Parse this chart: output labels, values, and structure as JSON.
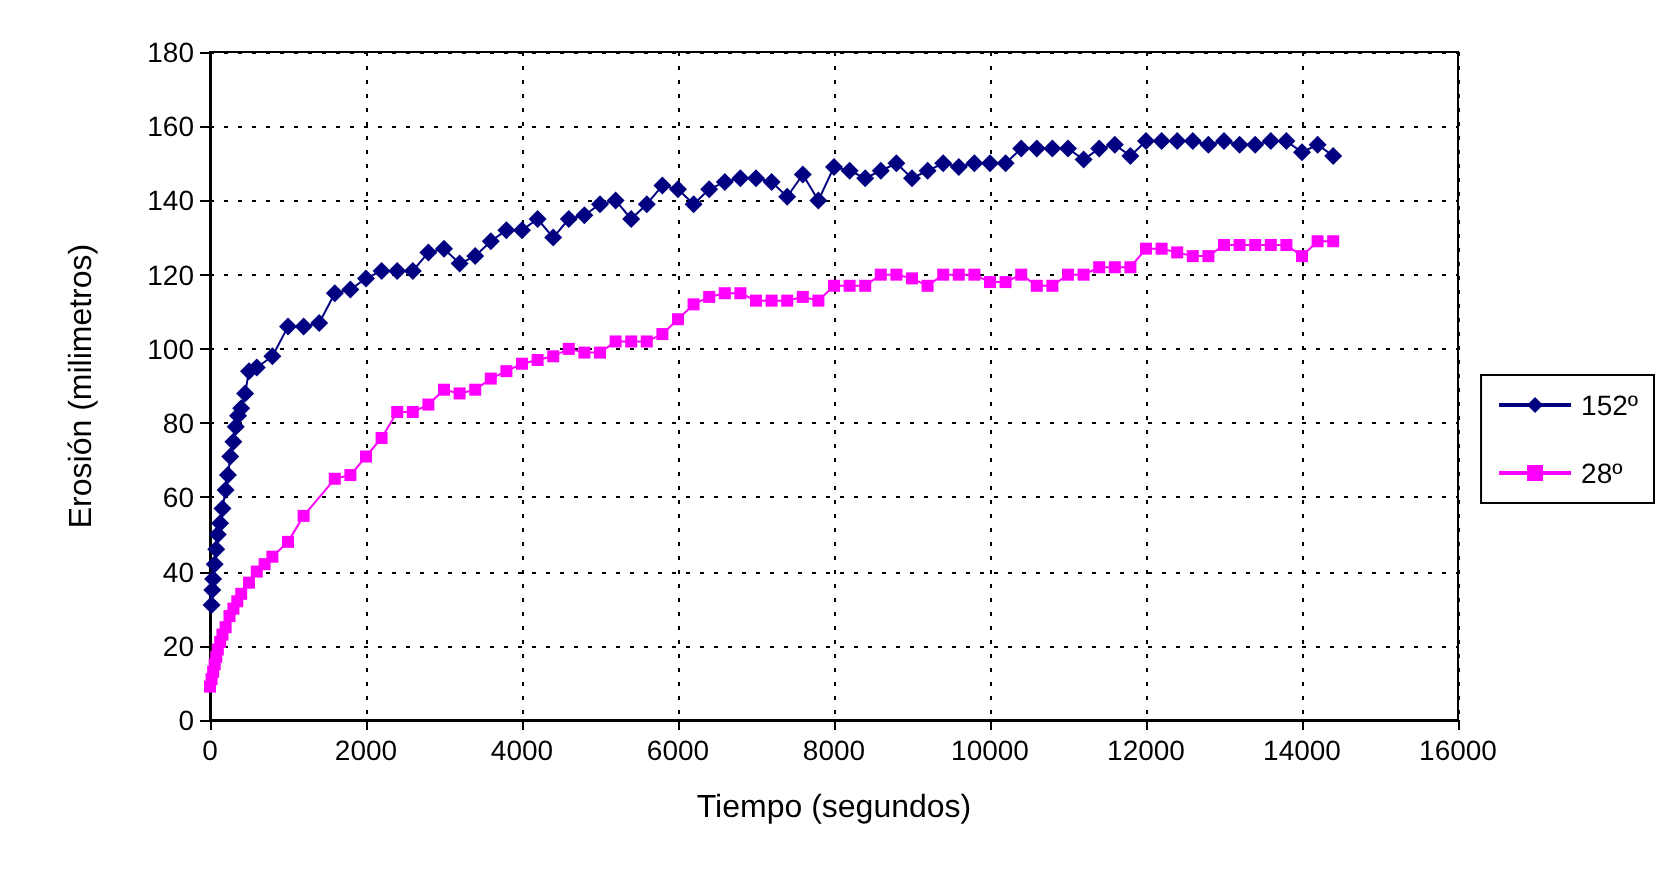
{
  "chart_data": {
    "type": "line",
    "xlabel": "Tiempo (segundos)",
    "ylabel": "Erosión (milimetros)",
    "xlim": [
      0,
      16000
    ],
    "xticks": [
      0,
      2000,
      4000,
      6000,
      8000,
      10000,
      12000,
      14000,
      16000
    ],
    "ylim": [
      0,
      180
    ],
    "yticks": [
      0,
      20,
      40,
      60,
      80,
      100,
      120,
      140,
      160,
      180
    ],
    "grid": true,
    "legend": "right",
    "line_style": "solid",
    "series": [
      {
        "name": "152º",
        "color": "#000080",
        "marker": "diamond",
        "x": [
          20,
          30,
          40,
          60,
          80,
          100,
          130,
          160,
          200,
          230,
          260,
          300,
          330,
          360,
          400,
          450,
          500,
          600,
          800,
          1000,
          1200,
          1400,
          1600,
          1800,
          2000,
          2200,
          2400,
          2600,
          2800,
          3000,
          3200,
          3400,
          3600,
          3800,
          4000,
          4200,
          4400,
          4600,
          4800,
          5000,
          5200,
          5400,
          5600,
          5800,
          6000,
          6200,
          6400,
          6600,
          6800,
          7000,
          7200,
          7400,
          7600,
          7800,
          8000,
          8200,
          8400,
          8600,
          8800,
          9000,
          9200,
          9400,
          9600,
          9800,
          10000,
          10200,
          10400,
          10600,
          10800,
          11000,
          11200,
          11400,
          11600,
          11800,
          12000,
          12200,
          12400,
          12600,
          12800,
          13000,
          13200,
          13400,
          13600,
          13800,
          14000,
          14200,
          14400
        ],
        "values": [
          31,
          35,
          38,
          42,
          46,
          50,
          53,
          57,
          62,
          66,
          71,
          75,
          79,
          82,
          84,
          88,
          94,
          95,
          98,
          106,
          106,
          107,
          115,
          116,
          119,
          121,
          121,
          121,
          126,
          127,
          123,
          125,
          129,
          132,
          132,
          135,
          130,
          135,
          136,
          139,
          140,
          135,
          139,
          144,
          143,
          139,
          143,
          145,
          146,
          146,
          145,
          141,
          147,
          140,
          149,
          148,
          146,
          148,
          150,
          146,
          148,
          150,
          149,
          150,
          150,
          150,
          154,
          154,
          154,
          154,
          151,
          154,
          155,
          152,
          156,
          156,
          156,
          156,
          155,
          156,
          155,
          155,
          156,
          156,
          153,
          155,
          152
        ]
      },
      {
        "name": "28º",
        "color": "#ff00ff",
        "marker": "square",
        "x": [
          0,
          20,
          40,
          60,
          80,
          100,
          130,
          160,
          200,
          250,
          300,
          350,
          400,
          500,
          600,
          700,
          800,
          1000,
          1200,
          1600,
          1800,
          2000,
          2200,
          2400,
          2600,
          2800,
          3000,
          3200,
          3400,
          3600,
          3800,
          4000,
          4200,
          4400,
          4600,
          4800,
          5000,
          5200,
          5400,
          5600,
          5800,
          6000,
          6200,
          6400,
          6600,
          6800,
          7000,
          7200,
          7400,
          7600,
          7800,
          8000,
          8200,
          8400,
          8600,
          8800,
          9000,
          9200,
          9400,
          9600,
          9800,
          10000,
          10200,
          10400,
          10600,
          10800,
          11000,
          11200,
          11400,
          11600,
          11800,
          12000,
          12200,
          12400,
          12600,
          12800,
          13000,
          13200,
          13400,
          13600,
          13800,
          14000,
          14200,
          14400
        ],
        "values": [
          9,
          11,
          13,
          15,
          17,
          19,
          21,
          23,
          25,
          28,
          30,
          32,
          34,
          37,
          40,
          42,
          44,
          48,
          55,
          65,
          66,
          71,
          76,
          83,
          83,
          85,
          89,
          88,
          89,
          92,
          94,
          96,
          97,
          98,
          100,
          99,
          99,
          102,
          102,
          102,
          104,
          108,
          112,
          114,
          115,
          115,
          113,
          113,
          113,
          114,
          113,
          117,
          117,
          117,
          120,
          120,
          119,
          117,
          120,
          120,
          120,
          118,
          118,
          120,
          117,
          117,
          120,
          120,
          122,
          122,
          122,
          127,
          127,
          126,
          125,
          125,
          128,
          128,
          128,
          128,
          128,
          125,
          129,
          129
        ]
      }
    ]
  }
}
